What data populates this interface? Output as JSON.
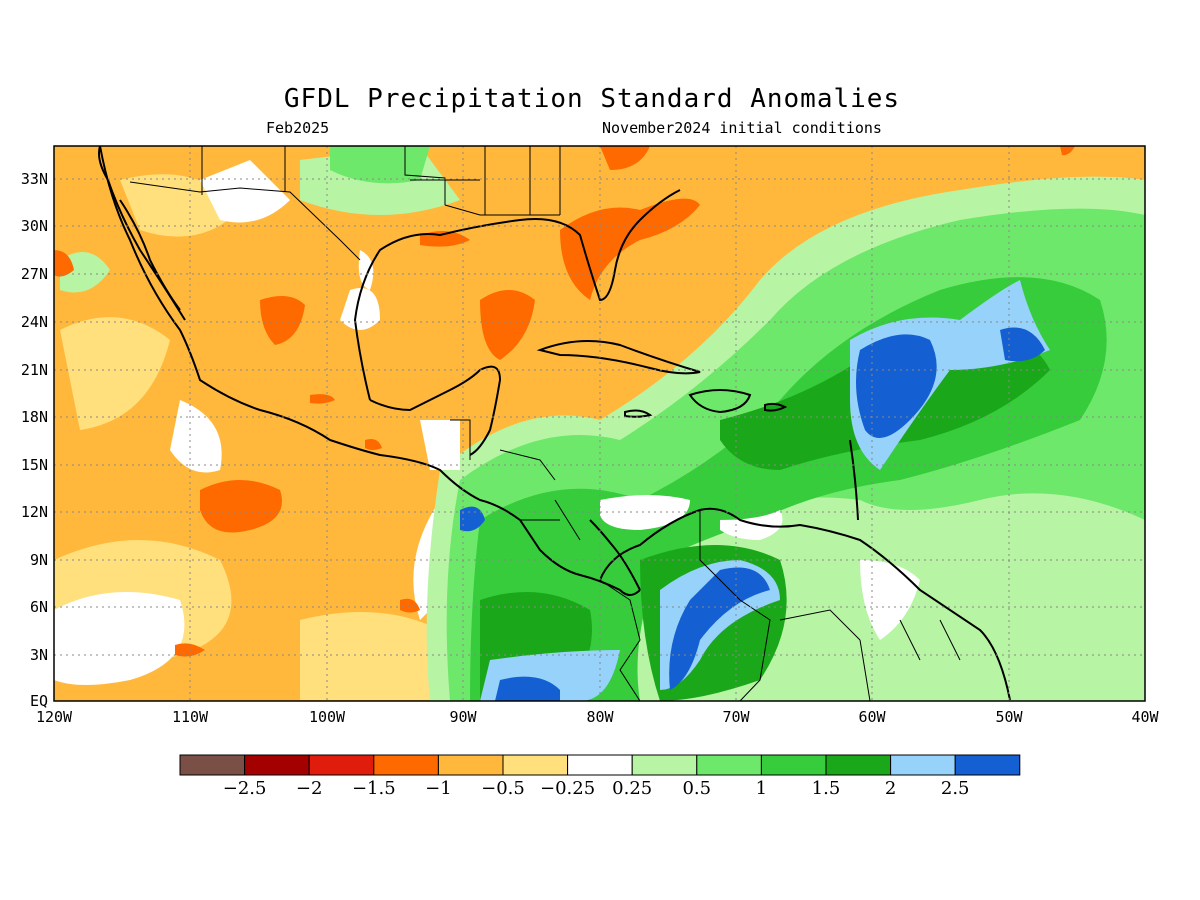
{
  "title": "GFDL Precipitation Standard Anomalies",
  "subtitle_left": "Feb2025",
  "subtitle_right": "November2024 initial conditions",
  "lat_ticks": [
    "33N",
    "30N",
    "27N",
    "24N",
    "21N",
    "18N",
    "15N",
    "12N",
    "9N",
    "6N",
    "3N",
    "EQ"
  ],
  "lon_ticks": [
    "120W",
    "110W",
    "100W",
    "90W",
    "80W",
    "70W",
    "60W",
    "50W",
    "40W"
  ],
  "colorbar": {
    "colors": [
      "#7a4f46",
      "#a30000",
      "#e01c0c",
      "#ff6a00",
      "#ffb83c",
      "#ffe07c",
      "#ffffff",
      "#b7f5a5",
      "#6ee86a",
      "#36cc3c",
      "#1aa81a",
      "#96d2fa",
      "#1460d2"
    ],
    "labels": [
      "-2.5",
      "-2",
      "-1.5",
      "-1",
      "-0.5",
      "-0.25",
      "0.25",
      "0.5",
      "1",
      "1.5",
      "2",
      "2.5"
    ]
  },
  "legend_palette": {
    "dry_moderate": "#ffb83c",
    "dry_strong": "#ff6a00",
    "dry_light": "#ffe07c",
    "wet_light": "#b7f5a5",
    "wet_moderate": "#6ee86a",
    "wet_strong": "#36cc3c",
    "wet_very": "#1aa81a",
    "wet_extreme_light": "#96d2fa",
    "wet_extreme": "#1460d2"
  }
}
